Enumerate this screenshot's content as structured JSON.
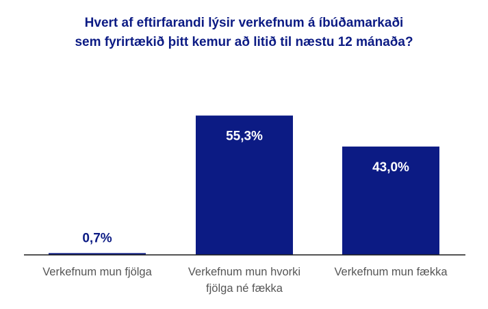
{
  "chart_data": {
    "type": "bar",
    "title": "Hvert af eftirfarandi lýsir verkefnum á íbúðamarkaði sem fyrirtækið þitt kemur að litið til næstu 12 mánaða?",
    "title_lines": [
      "Hvert af eftirfarandi lýsir verkefnum á íbúðamarkaði",
      "sem fyrirtækið þitt kemur að litið til næstu 12 mánaða?"
    ],
    "categories": [
      [
        "Verkefnum mun fjölga"
      ],
      [
        "Verkefnum mun hvorki",
        "fjölga né fækka"
      ],
      [
        "Verkefnum mun fækka"
      ]
    ],
    "values": [
      0.7,
      55.3,
      43.0
    ],
    "data_labels": [
      "0,7%",
      "55,3%",
      "43,0%"
    ],
    "unit": "%",
    "ylim": [
      0,
      62
    ],
    "xlabel": "",
    "ylabel": "",
    "grid": false,
    "legend": "none"
  },
  "colors": {
    "bar": "#0c1b84",
    "title": "#0c1b84",
    "label_inside": "#ffffff",
    "label_outside": "#0c1b84",
    "axis": "#1a1a1a",
    "tick_text": "#555555"
  }
}
